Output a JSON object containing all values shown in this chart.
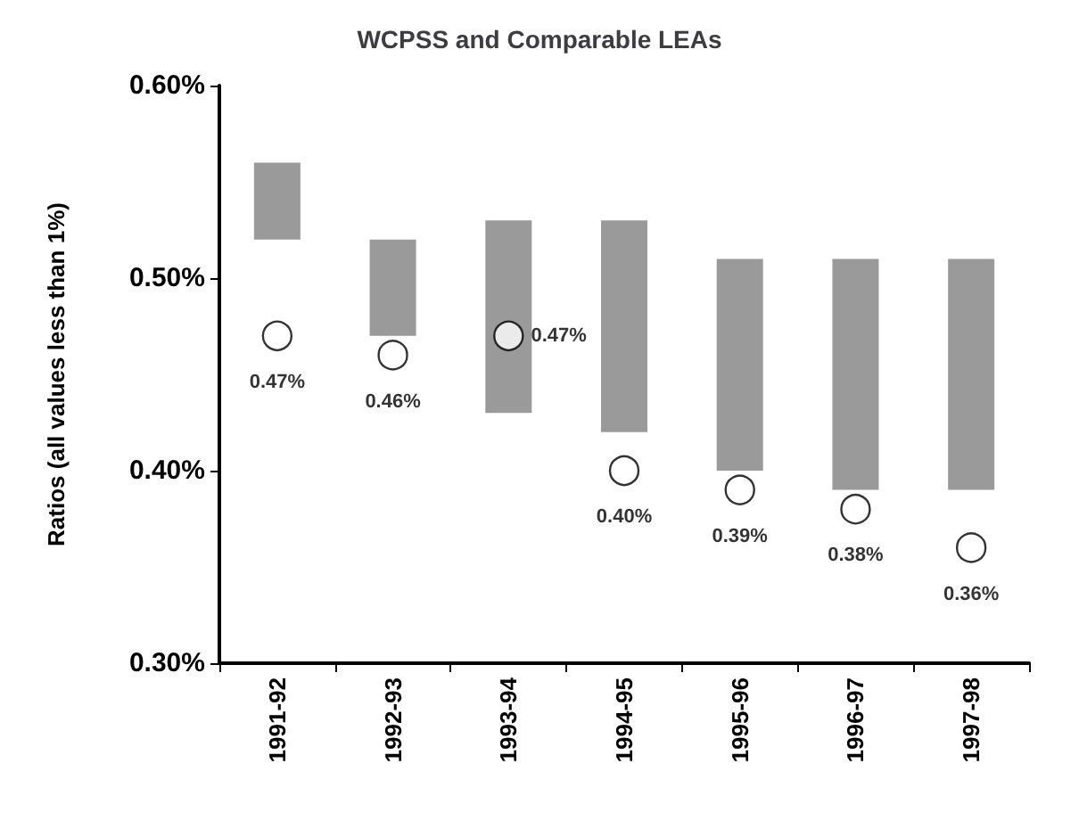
{
  "chart_data": {
    "type": "bar",
    "title": "WCPSS and Comparable LEAs",
    "ylabel": "Ratios (all values less than 1%)",
    "categories": [
      "1991-92",
      "1992-93",
      "1993-94",
      "1994-95",
      "1995-96",
      "1996-97",
      "1997-98"
    ],
    "series": [
      {
        "color": "#9a9a9a",
        "base": [
          0.52,
          0.47,
          0.43,
          0.42,
          0.4,
          0.39,
          0.39
        ],
        "values": [
          0.04,
          0.05,
          0.1,
          0.11,
          0.11,
          0.12,
          0.12
        ]
      },
      {
        "type": "scatter",
        "color": "#ffffff",
        "x": [
          "1991-92",
          "1992-93",
          "1993-94",
          "1994-95",
          "1995-96",
          "1996-97",
          "1997-98"
        ],
        "values": [
          0.47,
          0.46,
          0.47,
          0.4,
          0.39,
          0.38,
          0.36
        ],
        "value_labels": [
          "0.47%",
          "0.46%",
          "0.47%",
          "0.40%",
          "0.39%",
          "0.38%",
          "0.36%"
        ]
      }
    ],
    "ylim": [
      0.3,
      0.6
    ],
    "yticks": [
      {
        "value": 0.3,
        "label": "0.30%"
      },
      {
        "value": 0.4,
        "label": "0.40%"
      },
      {
        "value": 0.5,
        "label": "0.50%"
      },
      {
        "value": 0.6,
        "label": "0.60%"
      }
    ],
    "marker": "circle",
    "grid": false
  }
}
